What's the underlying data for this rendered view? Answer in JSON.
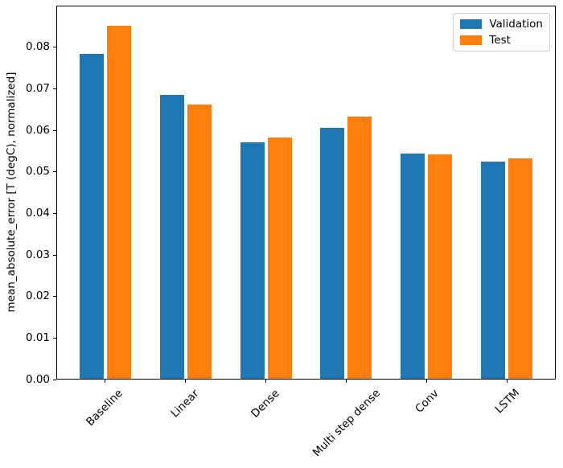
{
  "chart_data": {
    "type": "bar",
    "title": "",
    "xlabel": "",
    "ylabel": "mean_absolute_error [T (degC), normalized]",
    "categories": [
      "Baseline",
      "Linear",
      "Dense",
      "Multi step dense",
      "Conv",
      "LSTM"
    ],
    "series": [
      {
        "name": "Validation",
        "color": "#1f77b4",
        "values": [
          0.0785,
          0.0687,
          0.0572,
          0.0606,
          0.0545,
          0.0525
        ]
      },
      {
        "name": "Test",
        "color": "#ff7f0e",
        "values": [
          0.0853,
          0.0663,
          0.0583,
          0.0634,
          0.0543,
          0.0533
        ]
      }
    ],
    "ylim": [
      0,
      0.09
    ],
    "xlim": [
      -0.6,
      5.6
    ],
    "yticks": [
      0.0,
      0.01,
      0.02,
      0.03,
      0.04,
      0.05,
      0.06,
      0.07,
      0.08
    ],
    "ytick_labels": [
      "0.00",
      "0.01",
      "0.02",
      "0.03",
      "0.04",
      "0.05",
      "0.06",
      "0.07",
      "0.08"
    ],
    "bar_width": 0.3,
    "group_offsets": [
      -0.17,
      0.17
    ],
    "xtick_rotation_deg": 45,
    "grid": false,
    "legend": {
      "position": "upper right",
      "labels": [
        "Validation",
        "Test"
      ]
    }
  }
}
